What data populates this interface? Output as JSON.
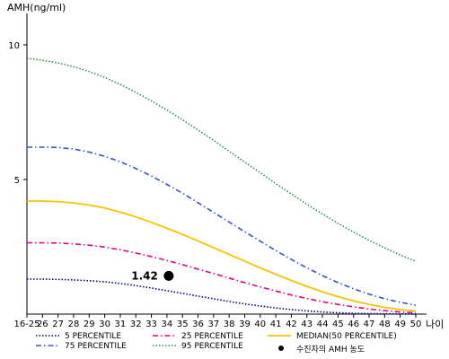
{
  "chart_data": {
    "type": "line",
    "ylabel": "AMH(ng/ml)",
    "xlabel": "나이",
    "x": [
      "16-25",
      "26",
      "27",
      "28",
      "29",
      "30",
      "31",
      "32",
      "33",
      "34",
      "35",
      "36",
      "37",
      "38",
      "39",
      "40",
      "41",
      "42",
      "43",
      "44",
      "45",
      "46",
      "47",
      "48",
      "49",
      "50"
    ],
    "xlim": [
      25,
      50
    ],
    "ylim": [
      0,
      11
    ],
    "yticks": [
      5,
      10
    ],
    "grid": false,
    "legend_position": "bottom",
    "series": [
      {
        "name": "5 PERCENTILE",
        "color": "#000080",
        "dash": "dotted",
        "values": [
          1.3,
          1.3,
          1.29,
          1.27,
          1.24,
          1.2,
          1.14,
          1.06,
          0.97,
          0.87,
          0.77,
          0.67,
          0.57,
          0.47,
          0.38,
          0.3,
          0.23,
          0.17,
          0.12,
          0.08,
          0.05,
          0.03,
          0.02,
          0.01,
          0.01,
          0.0
        ]
      },
      {
        "name": "25 PERCENTILE",
        "color": "#e6008a",
        "dash": "dashdot",
        "values": [
          2.65,
          2.65,
          2.64,
          2.61,
          2.56,
          2.49,
          2.39,
          2.27,
          2.14,
          1.99,
          1.84,
          1.67,
          1.51,
          1.34,
          1.17,
          1.01,
          0.86,
          0.71,
          0.58,
          0.46,
          0.36,
          0.27,
          0.19,
          0.13,
          0.08,
          0.05
        ]
      },
      {
        "name": "MEDIAN(50 PERCENTILE)",
        "color": "#f5c400",
        "dash": "solid",
        "values": [
          4.2,
          4.2,
          4.18,
          4.13,
          4.05,
          3.94,
          3.79,
          3.61,
          3.41,
          3.19,
          2.96,
          2.72,
          2.47,
          2.22,
          1.97,
          1.72,
          1.48,
          1.25,
          1.03,
          0.83,
          0.65,
          0.49,
          0.36,
          0.25,
          0.17,
          0.11
        ]
      },
      {
        "name": "75 PERCENTILE",
        "color": "#3355cc",
        "dash": "dashdot",
        "values": [
          6.2,
          6.2,
          6.19,
          6.13,
          6.02,
          5.86,
          5.66,
          5.41,
          5.13,
          4.82,
          4.49,
          4.14,
          3.78,
          3.42,
          3.06,
          2.71,
          2.36,
          2.03,
          1.72,
          1.43,
          1.17,
          0.94,
          0.74,
          0.57,
          0.44,
          0.33
        ]
      },
      {
        "name": "95 PERCENTILE",
        "color": "#2e8b57",
        "dash": "dotted",
        "values": [
          9.5,
          9.43,
          9.33,
          9.19,
          9.01,
          8.79,
          8.53,
          8.24,
          7.92,
          7.58,
          7.22,
          6.84,
          6.45,
          6.05,
          5.65,
          5.25,
          4.85,
          4.46,
          4.08,
          3.72,
          3.37,
          3.05,
          2.74,
          2.46,
          2.2,
          1.96
        ]
      }
    ],
    "annotation": {
      "label": "1.42",
      "x_index": 9,
      "value": 1.42,
      "legend_label": "수진자의 AMH 농도"
    }
  }
}
